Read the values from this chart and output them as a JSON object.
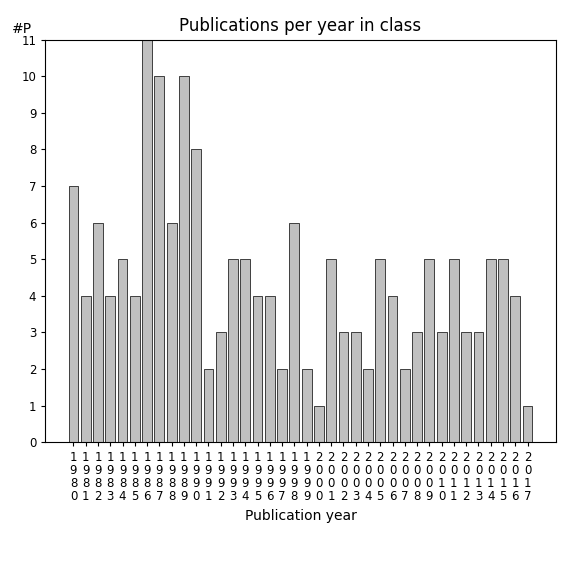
{
  "title": "Publications per year in class",
  "xlabel": "Publication year",
  "ylabel": "#P",
  "bar_color": "#c0c0c0",
  "edge_color": "#000000",
  "years": [
    "1980",
    "1981",
    "1982",
    "1983",
    "1984",
    "1985",
    "1986",
    "1987",
    "1988",
    "1989",
    "1990",
    "1991",
    "1992",
    "1993",
    "1994",
    "1995",
    "1996",
    "1997",
    "1998",
    "1999",
    "2000",
    "2001",
    "2002",
    "2003",
    "2004",
    "2005",
    "2006",
    "2007",
    "2008",
    "2009",
    "2010",
    "2011",
    "2012",
    "2013",
    "2014",
    "2015",
    "2016",
    "2017"
  ],
  "values": [
    7,
    4,
    6,
    4,
    5,
    4,
    11,
    10,
    6,
    10,
    8,
    2,
    3,
    5,
    5,
    4,
    4,
    2,
    6,
    2,
    1,
    5,
    3,
    3,
    2,
    5,
    4,
    2,
    3,
    5,
    3,
    5,
    3,
    3,
    5,
    5,
    4,
    1
  ],
  "ylim": [
    0,
    11
  ],
  "yticks": [
    0,
    1,
    2,
    3,
    4,
    5,
    6,
    7,
    8,
    9,
    10,
    11
  ],
  "background_color": "#ffffff",
  "title_fontsize": 12,
  "label_fontsize": 10,
  "tick_fontsize": 8.5
}
